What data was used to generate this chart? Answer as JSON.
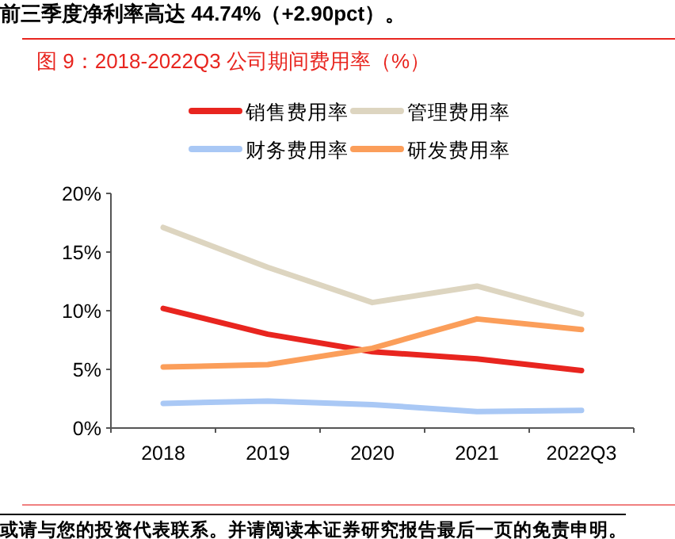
{
  "chart_data": {
    "type": "line",
    "title": "图 9：2018-2022Q3 公司期间费用率（%）",
    "annotations": [
      "前三季度净利率高达 44.74%（+2.90pct）。",
      "或请与您的投资代表联系。并请阅读本证券研究报告最后一页的免责申明。"
    ],
    "categories": [
      "2018",
      "2019",
      "2020",
      "2021",
      "2022Q3"
    ],
    "series": [
      {
        "name": "销售费用率",
        "color": "#e8251f",
        "values": [
          10.2,
          8.0,
          6.5,
          5.9,
          4.9
        ]
      },
      {
        "name": "管理费用率",
        "color": "#ddd5c0",
        "values": [
          17.1,
          13.7,
          10.7,
          12.1,
          9.7
        ]
      },
      {
        "name": "财务费用率",
        "color": "#a9c8f5",
        "values": [
          2.1,
          2.3,
          2.0,
          1.4,
          1.5
        ]
      },
      {
        "name": "研发费用率",
        "color": "#fb9e5a",
        "values": [
          5.2,
          5.4,
          6.8,
          9.3,
          8.4
        ]
      }
    ],
    "ylim": [
      0,
      20
    ],
    "yticks": [
      {
        "value": 0,
        "label": "0%"
      },
      {
        "value": 5,
        "label": "5%"
      },
      {
        "value": 10,
        "label": "10%"
      },
      {
        "value": 15,
        "label": "15%"
      },
      {
        "value": 20,
        "label": "20%"
      }
    ],
    "legend": "top",
    "grid": false,
    "marker": "none",
    "line_style": "solid"
  }
}
